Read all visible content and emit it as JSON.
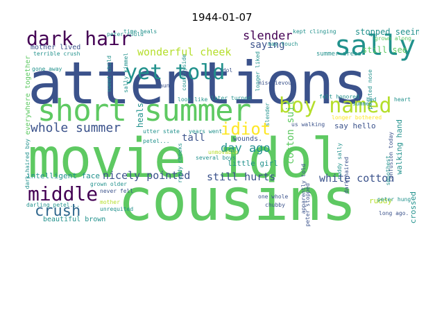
{
  "title": "1944-01-07",
  "colors": {
    "navy": "#3b528b",
    "teal": "#21918c",
    "purple": "#440154",
    "green": "#5ec962",
    "lime": "#b5de2b",
    "yellow": "#fde725",
    "blue": "#31688e"
  },
  "words": [
    {
      "t": "attentions",
      "c": "navy"
    },
    {
      "t": "movie idol",
      "c": "green"
    },
    {
      "t": "cousins",
      "c": "green"
    },
    {
      "t": "short summer",
      "c": "green"
    },
    {
      "t": "boy named",
      "c": "lime"
    },
    {
      "t": "yet told",
      "c": "teal"
    },
    {
      "t": "sally",
      "c": "teal"
    },
    {
      "t": "dark hair",
      "c": "purple"
    },
    {
      "t": "middle",
      "c": "purple"
    },
    {
      "t": "whole summer",
      "c": "navy"
    },
    {
      "t": "idiot",
      "c": "yellow"
    },
    {
      "t": "crush",
      "c": "blue"
    },
    {
      "t": "nicely pointed",
      "c": "navy"
    },
    {
      "t": "still hurts",
      "c": "navy"
    },
    {
      "t": "white cotton",
      "c": "navy"
    },
    {
      "t": "day ago",
      "c": "teal"
    },
    {
      "t": "slender",
      "c": "purple"
    },
    {
      "t": "saying",
      "c": "navy"
    },
    {
      "t": "wonderful cheek",
      "c": "lime"
    },
    {
      "t": "stopped seeing",
      "c": "teal"
    },
    {
      "t": "little girl",
      "c": "teal"
    },
    {
      "t": "intelligent face",
      "c": "teal"
    },
    {
      "t": "mother lived",
      "c": "navy"
    },
    {
      "t": "say hello",
      "c": "navy"
    },
    {
      "t": "beautiful brown",
      "c": "teal"
    },
    {
      "t": "wounds.",
      "c": "navy"
    },
    {
      "t": "tall",
      "c": "navy"
    },
    {
      "t": "heals",
      "c": "teal"
    },
    {
      "t": "still see",
      "c": "green"
    },
    {
      "t": "ruddy",
      "c": "lime"
    },
    {
      "t": "cotton suit",
      "c": "green"
    },
    {
      "t": "time heals",
      "c": "teal"
    },
    {
      "t": "kept clinging",
      "c": "teal"
    },
    {
      "t": "grown along",
      "c": "green"
    },
    {
      "t": "terrible crush",
      "c": "teal"
    },
    {
      "t": "summer dress",
      "c": "teal"
    },
    {
      "t": "idol",
      "c": "navy"
    },
    {
      "t": "aunt",
      "c": "navy"
    },
    {
      "t": "mischievous",
      "c": "navy"
    },
    {
      "t": "pointed nose",
      "c": "teal"
    },
    {
      "t": "inseparable",
      "c": "navy"
    },
    {
      "t": "felt honored",
      "c": "teal"
    },
    {
      "t": "look like",
      "c": "teal"
    },
    {
      "t": "later turned",
      "c": "teal"
    },
    {
      "t": "us walking",
      "c": "navy"
    },
    {
      "t": "longer bothered",
      "c": "yellow"
    },
    {
      "t": "walking hand",
      "c": "teal"
    },
    {
      "t": "confusion today",
      "c": "navy"
    },
    {
      "t": "utter state",
      "c": "teal"
    },
    {
      "t": "years went",
      "c": "teal"
    },
    {
      "t": "never fell",
      "c": "navy"
    },
    {
      "t": "grown older",
      "c": "teal"
    },
    {
      "t": "darling petel...",
      "c": "teal"
    },
    {
      "t": "peter crossed",
      "c": "teal"
    },
    {
      "t": "peter hung",
      "c": "teal"
    },
    {
      "t": "long ago.",
      "c": "navy"
    },
    {
      "t": "one whole",
      "c": "navy"
    },
    {
      "t": "chubby",
      "c": "navy"
    },
    {
      "t": "unrequited",
      "c": "teal"
    },
    {
      "t": "mother",
      "c": "lime"
    },
    {
      "t": "peter could",
      "c": "teal"
    },
    {
      "t": "may touch",
      "c": "teal"
    },
    {
      "t": "gone away",
      "c": "teal"
    },
    {
      "t": "several boys",
      "c": "teal"
    },
    {
      "t": "petel...",
      "c": "teal"
    },
    {
      "t": "longer liked",
      "c": "teal"
    },
    {
      "t": "everywhere together",
      "c": "green"
    },
    {
      "t": "sally kimmel",
      "c": "teal"
    },
    {
      "t": "countryside",
      "c": "teal"
    },
    {
      "t": "sweet child",
      "c": "teal"
    },
    {
      "t": "dark-haired",
      "c": "navy"
    },
    {
      "t": "apparently told",
      "c": "navy"
    },
    {
      "t": "peter stopped",
      "c": "navy"
    },
    {
      "t": "ruddy sally",
      "c": "teal"
    },
    {
      "t": "ruddy cheeks",
      "c": "teal"
    },
    {
      "t": "dark-haired boy",
      "c": "teal"
    },
    {
      "t": "smoothest",
      "c": "teal"
    },
    {
      "t": "unmovable",
      "c": "lime"
    },
    {
      "t": "slender",
      "c": "teal"
    },
    {
      "t": "summer",
      "c": "teal"
    },
    {
      "t": "bed",
      "c": "teal"
    },
    {
      "t": "heart",
      "c": "teal"
    }
  ]
}
